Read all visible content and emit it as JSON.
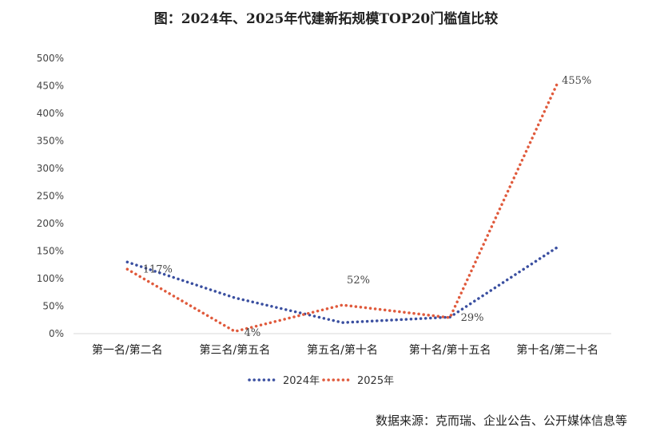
{
  "chart_data": {
    "type": "line",
    "title": "图：2024年、2025年代建新拓规模TOP20门槛值比较",
    "categories": [
      "第一名/第二名",
      "第三名/第五名",
      "第五名/第十名",
      "第十名/第十五名",
      "第十名/第二十名"
    ],
    "series": [
      {
        "name": "2024年",
        "color": "#3a4fa0",
        "values": [
          130,
          65,
          20,
          30,
          157
        ]
      },
      {
        "name": "2025年",
        "color": "#e05a3c",
        "values": [
          117,
          4,
          52,
          29,
          455
        ],
        "data_labels": [
          "117%",
          "4%",
          "52%",
          "29%",
          "455%"
        ]
      }
    ],
    "ylim": [
      0,
      500
    ],
    "yticks": [
      "0%",
      "50%",
      "100%",
      "150%",
      "200%",
      "250%",
      "300%",
      "350%",
      "400%",
      "450%",
      "500%"
    ],
    "xlabel": "",
    "ylabel": "",
    "legend": "bottom",
    "grid": false,
    "line_style": "dotted"
  },
  "source": "数据来源：克而瑞、企业公告、公开媒体信息等"
}
